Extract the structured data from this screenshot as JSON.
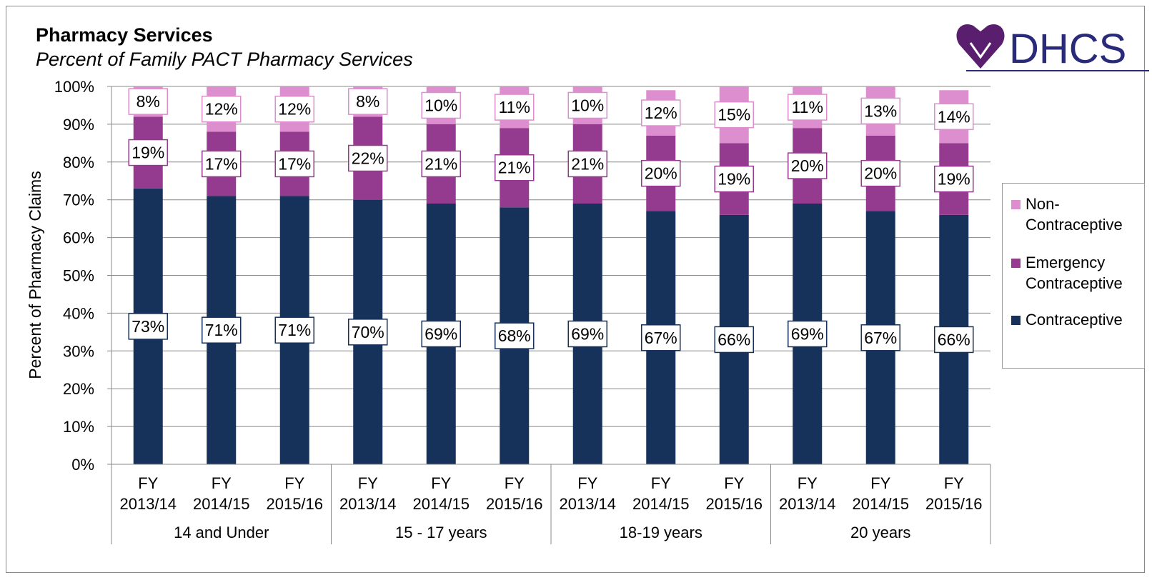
{
  "chart_data": {
    "type": "stacked_bar",
    "title": "Pharmacy Services",
    "subtitle": "Percent of Family PACT Pharmacy Services",
    "logo_text": "DHCS",
    "y_label": "Percent of Pharmacy Claims",
    "categories": [
      "FY 2013/14",
      "FY 2014/15",
      "FY 2015/16",
      "FY 2013/14",
      "FY 2014/15",
      "FY 2015/16",
      "FY 2013/14",
      "FY 2014/15",
      "FY 2015/16",
      "FY 2013/14",
      "FY 2014/15",
      "FY 2015/16"
    ],
    "groups": [
      "14 and Under",
      "15 - 17 years",
      "18-19 years",
      "20 years"
    ],
    "series": [
      {
        "name": "Contraceptive",
        "color": "#17325a",
        "values": [
          73,
          71,
          71,
          70,
          69,
          68,
          69,
          67,
          66,
          69,
          67,
          66
        ],
        "value_labels": [
          "73%",
          "71%",
          "71%",
          "70%",
          "69%",
          "68%",
          "69%",
          "67%",
          "66%",
          "69%",
          "67%",
          "66%"
        ]
      },
      {
        "name": "Emergency Contraceptive",
        "color": "#953b8f",
        "values": [
          19,
          17,
          17,
          22,
          21,
          21,
          21,
          20,
          19,
          20,
          20,
          19
        ],
        "value_labels": [
          "19%",
          "17%",
          "17%",
          "22%",
          "21%",
          "21%",
          "21%",
          "20%",
          "19%",
          "20%",
          "20%",
          "19%"
        ]
      },
      {
        "name": "Non-Contraceptive",
        "color": "#dd8ecf",
        "values": [
          8,
          12,
          12,
          8,
          10,
          11,
          10,
          12,
          15,
          11,
          13,
          14
        ],
        "value_labels": [
          "8%",
          "12%",
          "12%",
          "8%",
          "10%",
          "11%",
          "10%",
          "12%",
          "15%",
          "11%",
          "13%",
          "14%"
        ]
      }
    ],
    "ylim": [
      0,
      100
    ],
    "yticks": [
      {
        "value": 0,
        "label": "0%"
      },
      {
        "value": 10,
        "label": "10%"
      },
      {
        "value": 20,
        "label": "20%"
      },
      {
        "value": 30,
        "label": "30%"
      },
      {
        "value": 40,
        "label": "40%"
      },
      {
        "value": 50,
        "label": "50%"
      },
      {
        "value": 60,
        "label": "60%"
      },
      {
        "value": 70,
        "label": "70%"
      },
      {
        "value": 80,
        "label": "80%"
      },
      {
        "value": 90,
        "label": "90%"
      },
      {
        "value": 100,
        "label": "100%"
      }
    ],
    "grid": true,
    "legend": "right"
  }
}
